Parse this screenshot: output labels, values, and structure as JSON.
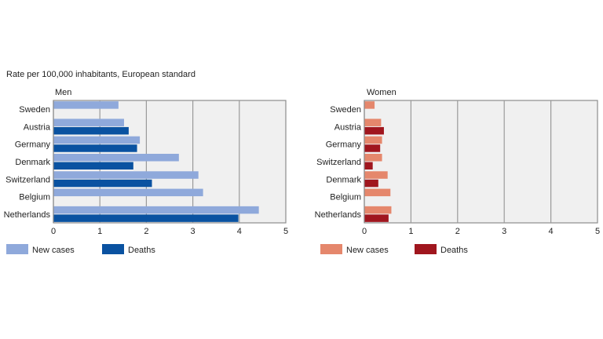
{
  "subtitle": "Rate per 100,000 inhabitants, European standard",
  "chart_data": [
    {
      "type": "bar",
      "orientation": "horizontal",
      "title": "Men",
      "categories": [
        "Sweden",
        "Austria",
        "Germany",
        "Denmark",
        "Switzerland",
        "Belgium",
        "Netherlands"
      ],
      "series": [
        {
          "name": "New cases",
          "color": "#8fa9db",
          "values": [
            1.4,
            1.52,
            1.86,
            2.7,
            3.12,
            3.22,
            4.42
          ]
        },
        {
          "name": "Deaths",
          "color": "#0a52a1",
          "values": [
            null,
            1.62,
            1.8,
            1.72,
            2.12,
            null,
            3.98
          ]
        }
      ],
      "xlim": [
        0,
        5
      ],
      "xticks": [
        "0",
        "1",
        "2",
        "3",
        "4",
        "5"
      ],
      "grid": true,
      "legend": "bottom-left"
    },
    {
      "type": "bar",
      "orientation": "horizontal",
      "title": "Women",
      "categories": [
        "Sweden",
        "Austria",
        "Germany",
        "Switzerland",
        "Denmark",
        "Belgium",
        "Netherlands"
      ],
      "series": [
        {
          "name": "New cases",
          "color": "#e5876c",
          "values": [
            0.22,
            0.36,
            0.38,
            0.38,
            0.5,
            0.56,
            0.58
          ]
        },
        {
          "name": "Deaths",
          "color": "#a0161e",
          "values": [
            null,
            0.42,
            0.34,
            0.18,
            0.3,
            null,
            0.52
          ]
        }
      ],
      "xlim": [
        0,
        5
      ],
      "xticks": [
        "0",
        "1",
        "2",
        "3",
        "4",
        "5"
      ],
      "grid": true,
      "legend": "bottom-left"
    }
  ]
}
